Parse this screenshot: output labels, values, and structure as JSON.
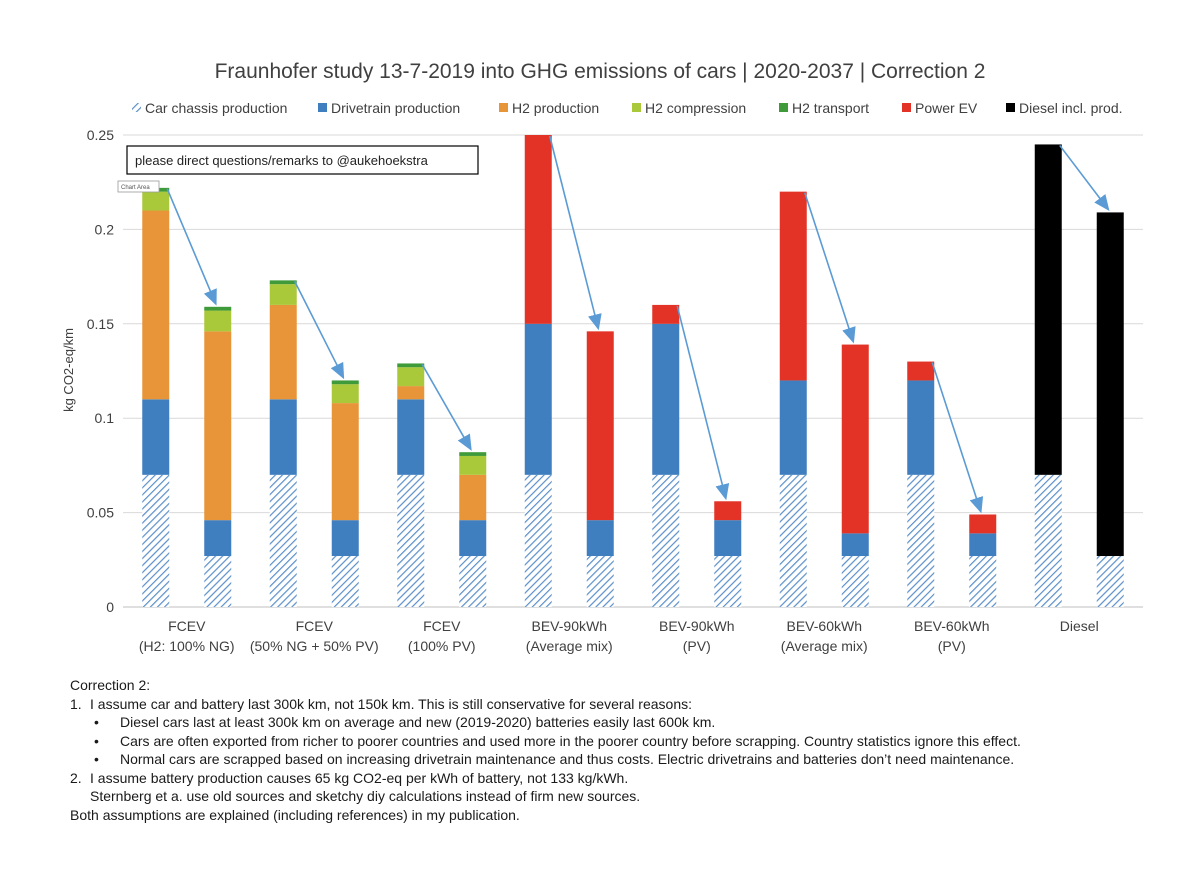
{
  "chart_data": {
    "type": "bar",
    "stacked": true,
    "title": "Fraunhofer study 13-7-2019 into GHG emissions of cars | 2020-2037 | Correction 2",
    "ylabel": "kg CO2-eq/km",
    "ylim": [
      0,
      0.25
    ],
    "yticks": [
      "0",
      "0.05",
      "0.1",
      "0.15",
      "0.2",
      "0.25"
    ],
    "grid": true,
    "legend_position": "top",
    "categories": [
      {
        "line1": "FCEV",
        "line2": "(H2: 100% NG)"
      },
      {
        "line1": "FCEV",
        "line2": "(50% NG + 50% PV)"
      },
      {
        "line1": "FCEV",
        "line2": "(100% PV)"
      },
      {
        "line1": "BEV-90kWh",
        "line2": "(Average mix)"
      },
      {
        "line1": "BEV-90kWh",
        "line2": "(PV)"
      },
      {
        "line1": "BEV-60kWh",
        "line2": "(Average mix)"
      },
      {
        "line1": "BEV-60kWh",
        "line2": "(PV)"
      },
      {
        "line1": "Diesel",
        "line2": ""
      }
    ],
    "series": [
      {
        "name": "Car chassis production",
        "color": "#5b8fc9",
        "pattern": "hatched"
      },
      {
        "name": "Drivetrain production",
        "color": "#3f7fbf"
      },
      {
        "name": "H2 production",
        "color": "#e8953a"
      },
      {
        "name": "H2 compression",
        "color": "#a9c83a"
      },
      {
        "name": "H2 transport",
        "color": "#3f9a3a"
      },
      {
        "name": "Power EV",
        "color": "#e33326"
      },
      {
        "name": "Diesel incl. prod.",
        "color": "#000000"
      }
    ],
    "bars": [
      {
        "category": 0,
        "variant": "original",
        "values": [
          0.07,
          0.04,
          0.1,
          0.01,
          0.002,
          0,
          0
        ]
      },
      {
        "category": 0,
        "variant": "corrected",
        "values": [
          0.027,
          0.019,
          0.1,
          0.011,
          0.002,
          0,
          0
        ]
      },
      {
        "category": 1,
        "variant": "original",
        "values": [
          0.07,
          0.04,
          0.05,
          0.011,
          0.002,
          0,
          0
        ]
      },
      {
        "category": 1,
        "variant": "corrected",
        "values": [
          0.027,
          0.019,
          0.062,
          0.01,
          0.002,
          0,
          0
        ]
      },
      {
        "category": 2,
        "variant": "original",
        "values": [
          0.07,
          0.04,
          0.007,
          0.01,
          0.002,
          0,
          0
        ]
      },
      {
        "category": 2,
        "variant": "corrected",
        "values": [
          0.027,
          0.019,
          0.024,
          0.01,
          0.002,
          0,
          0
        ]
      },
      {
        "category": 3,
        "variant": "original",
        "values": [
          0.07,
          0.08,
          0,
          0,
          0,
          0.1,
          0
        ]
      },
      {
        "category": 3,
        "variant": "corrected",
        "values": [
          0.027,
          0.019,
          0,
          0,
          0,
          0.1,
          0
        ]
      },
      {
        "category": 4,
        "variant": "original",
        "values": [
          0.07,
          0.08,
          0,
          0,
          0,
          0.01,
          0
        ]
      },
      {
        "category": 4,
        "variant": "corrected",
        "values": [
          0.027,
          0.019,
          0,
          0,
          0,
          0.01,
          0
        ]
      },
      {
        "category": 5,
        "variant": "original",
        "values": [
          0.07,
          0.05,
          0,
          0,
          0,
          0.1,
          0
        ]
      },
      {
        "category": 5,
        "variant": "corrected",
        "values": [
          0.027,
          0.012,
          0,
          0,
          0,
          0.1,
          0
        ]
      },
      {
        "category": 6,
        "variant": "original",
        "values": [
          0.07,
          0.05,
          0,
          0,
          0,
          0.01,
          0
        ]
      },
      {
        "category": 6,
        "variant": "corrected",
        "values": [
          0.027,
          0.012,
          0,
          0,
          0,
          0.01,
          0
        ]
      },
      {
        "category": 7,
        "variant": "original",
        "values": [
          0.07,
          0,
          0,
          0,
          0,
          0,
          0.175
        ]
      },
      {
        "category": 7,
        "variant": "corrected",
        "values": [
          0.027,
          0,
          0,
          0,
          0,
          0,
          0.182
        ]
      }
    ],
    "annotation": "please direct questions/remarks to @aukehoekstra",
    "tooltip": "Chart Area"
  },
  "notes": {
    "heading": "Correction 2:",
    "items": [
      {
        "number": "1.",
        "text": "I assume car and battery last 300k km, not 150k km. This is still conservative for several reasons:",
        "bullets": [
          "Diesel cars last at least 300k km on average and new (2019-2020) batteries easily last 600k km.",
          "Cars are often exported from richer to poorer countries and used more in the poorer country before scrapping. Country statistics ignore this effect.",
          "Normal cars are scrapped based on increasing drivetrain maintenance and thus costs. Electric drivetrains and batteries don’t need maintenance."
        ]
      },
      {
        "number": "2.",
        "text": "I assume battery production causes 65 kg CO2-eq per kWh of battery, not 133 kg/kWh.",
        "continuation": "Sternberg et a. use old sources and sketchy diy calculations instead of firm new sources."
      }
    ],
    "footer": "Both assumptions are explained (including references) in my publication."
  }
}
